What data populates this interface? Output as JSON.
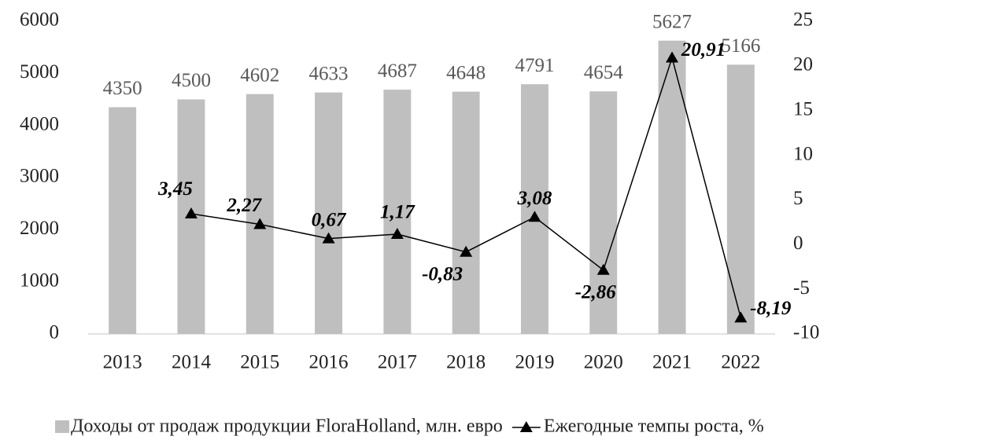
{
  "chart_data": {
    "type": "bar-line",
    "categories": [
      "2013",
      "2014",
      "2015",
      "2016",
      "2017",
      "2018",
      "2019",
      "2020",
      "2021",
      "2022"
    ],
    "series": [
      {
        "name": "Доходы от продаж продукции FloraHolland, млн. евро",
        "type": "bar",
        "color": "#bfbfbf",
        "values": [
          4350,
          4500,
          4602,
          4633,
          4687,
          4648,
          4791,
          4654,
          5627,
          5166
        ]
      },
      {
        "name": "Ежегодные темпы роста, %",
        "type": "line",
        "axis": "y2",
        "color": "#000000",
        "values": [
          null,
          3.45,
          2.27,
          0.67,
          1.17,
          -0.83,
          3.08,
          -2.86,
          20.91,
          -8.19
        ],
        "value_labels": [
          null,
          "3,45",
          "2,27",
          "0,67",
          "1,17",
          "-0,83",
          "3,08",
          "-2,86",
          "20,91",
          "-8,19"
        ]
      }
    ],
    "ylim": [
      0,
      6000
    ],
    "yticks": [
      0,
      1000,
      2000,
      3000,
      4000,
      5000,
      6000
    ],
    "y2lim": [
      -10,
      25
    ],
    "y2ticks": [
      -10,
      -5,
      0,
      5,
      10,
      15,
      20,
      25
    ],
    "grid": false,
    "legend": "bottom"
  }
}
